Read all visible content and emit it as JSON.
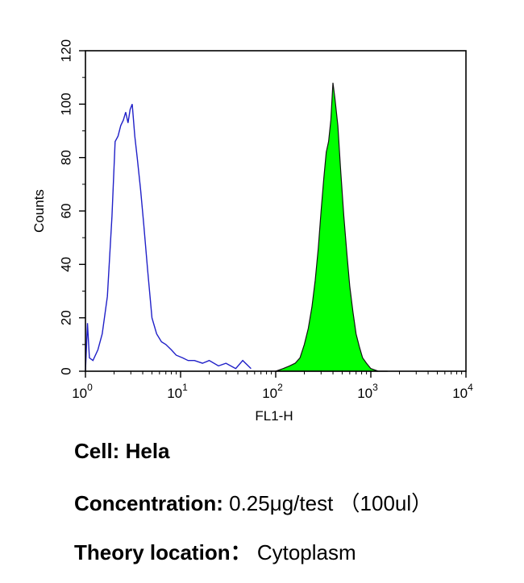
{
  "chart_data": {
    "type": "area",
    "xlabel": "FL1-H",
    "ylabel": "Counts",
    "x_scale": "log",
    "xlim": [
      1,
      10000
    ],
    "ylim": [
      0,
      120
    ],
    "x_ticks": [
      {
        "base": "10",
        "exp": "0",
        "value": 1
      },
      {
        "base": "10",
        "exp": "1",
        "value": 10
      },
      {
        "base": "10",
        "exp": "2",
        "value": 100
      },
      {
        "base": "10",
        "exp": "3",
        "value": 1000
      },
      {
        "base": "10",
        "exp": "4",
        "value": 10000
      }
    ],
    "y_ticks": [
      "0",
      "20",
      "40",
      "60",
      "80",
      "100",
      "120"
    ],
    "grid": false,
    "series": [
      {
        "style": "outline",
        "color": "#2020c8",
        "x": [
          1,
          1.05,
          1.1,
          1.2,
          1.35,
          1.5,
          1.7,
          1.9,
          2.05,
          2.2,
          2.35,
          2.5,
          2.65,
          2.8,
          2.95,
          3.1,
          3.3,
          3.5,
          3.8,
          4.1,
          4.5,
          5,
          5.6,
          6.3,
          7,
          8,
          9,
          10.5,
          12,
          14,
          17,
          20,
          25,
          30,
          38,
          45,
          55
        ],
        "y": [
          0,
          18,
          5,
          4,
          8,
          14,
          28,
          58,
          86,
          88,
          92,
          94,
          97,
          93,
          98,
          100,
          88,
          80,
          68,
          55,
          38,
          20,
          14,
          11,
          10,
          8,
          6,
          5,
          4,
          4,
          3,
          4,
          2,
          3,
          1,
          4,
          1
        ]
      },
      {
        "style": "filled",
        "color": "#00ff00",
        "x": [
          100,
          120,
          140,
          160,
          180,
          200,
          220,
          240,
          260,
          280,
          300,
          320,
          340,
          360,
          380,
          400,
          420,
          450,
          480,
          520,
          560,
          600,
          650,
          700,
          760,
          820,
          900,
          1000,
          1200,
          1500
        ],
        "y": [
          0,
          1,
          2,
          3,
          5,
          10,
          16,
          24,
          34,
          46,
          60,
          72,
          82,
          86,
          94,
          108,
          102,
          92,
          76,
          58,
          44,
          32,
          22,
          14,
          9,
          5,
          3,
          1,
          0,
          0
        ]
      }
    ]
  },
  "caption": {
    "cell_label": "Cell:",
    "cell_value": "Hela",
    "conc_label": "Concentration:",
    "conc_value": "0.25μg/test （100ul）",
    "loc_label": "Theory location：",
    "loc_value": "Cytoplasm"
  }
}
